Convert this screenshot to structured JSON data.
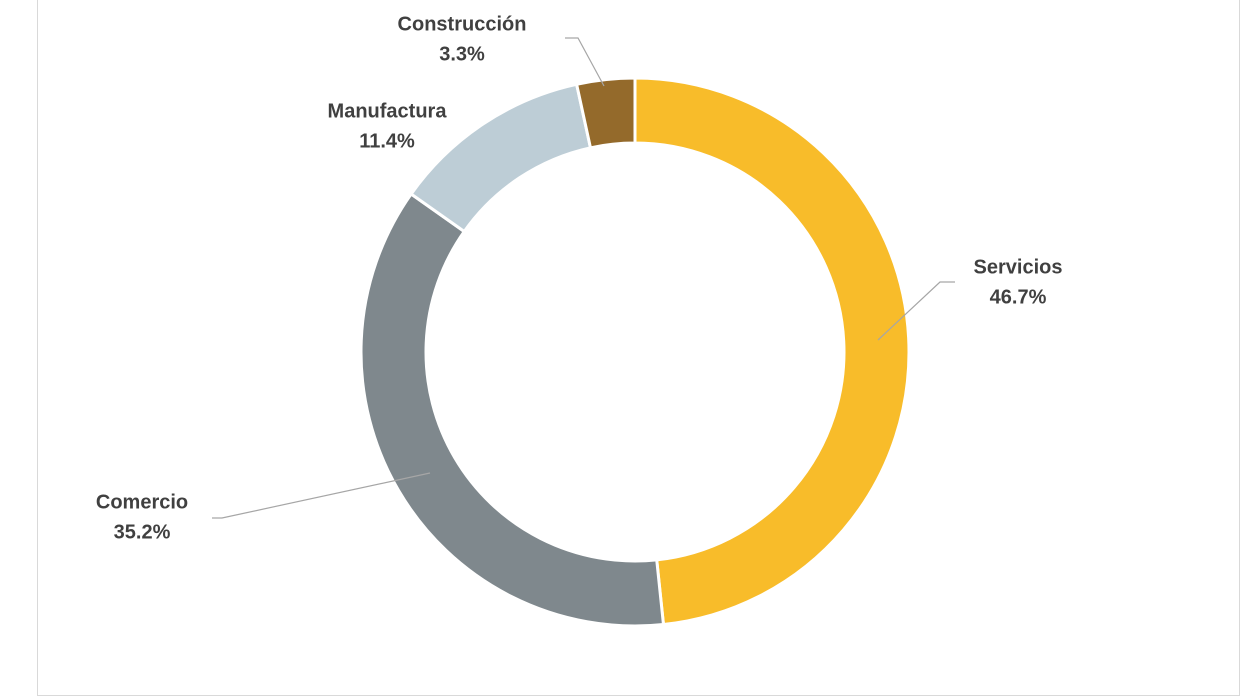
{
  "chart_data": {
    "type": "donut",
    "categories": [
      "Servicios",
      "Comercio",
      "Manufactura",
      "Construcción"
    ],
    "values": [
      46.7,
      35.2,
      11.4,
      3.3
    ],
    "value_labels": [
      "46.7%",
      "35.2%",
      "11.4%",
      "3.3%"
    ],
    "colors": [
      "#F8BC2A",
      "#7F888D",
      "#BDCDD6",
      "#946A2B"
    ]
  }
}
